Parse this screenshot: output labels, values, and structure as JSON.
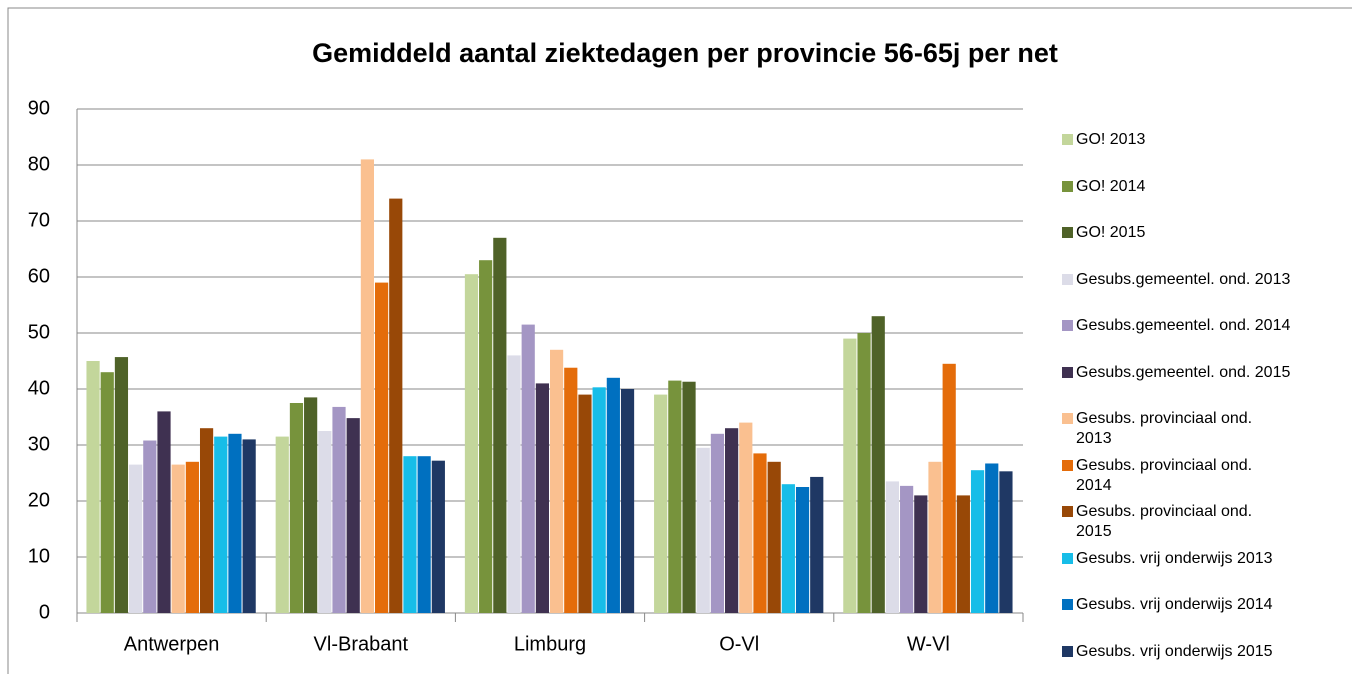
{
  "chart_data": {
    "type": "bar",
    "title": "Gemiddeld aantal ziektedagen per provincie 56-65j per net",
    "categories": [
      "Antwerpen",
      "Vl-Brabant",
      "Limburg",
      "O-Vl",
      "W-Vl"
    ],
    "series": [
      {
        "name": "GO! 2013",
        "color": "#c3d69b",
        "values": [
          45,
          31.5,
          60.5,
          39,
          49
        ]
      },
      {
        "name": "GO! 2014",
        "color": "#77933c",
        "values": [
          43,
          37.5,
          63,
          41.5,
          50
        ]
      },
      {
        "name": "GO! 2015",
        "color": "#4f6228",
        "values": [
          45.7,
          38.5,
          67,
          41.3,
          53
        ]
      },
      {
        "name": "Gesubs.gemeentel. ond. 2013",
        "color": "#dcdce8",
        "values": [
          26.5,
          32.5,
          46,
          29.5,
          23.5
        ]
      },
      {
        "name": "Gesubs.gemeentel. ond. 2014",
        "color": "#a496c4",
        "values": [
          30.8,
          36.8,
          51.5,
          32,
          22.7
        ]
      },
      {
        "name": "Gesubs.gemeentel. ond. 2015",
        "color": "#3f3151",
        "values": [
          36,
          34.8,
          41,
          33,
          21
        ]
      },
      {
        "name": "Gesubs. provinciaal ond. 2013",
        "color": "#fac090",
        "values": [
          26.5,
          81,
          47,
          34,
          27
        ]
      },
      {
        "name": "Gesubs. provinciaal ond. 2014",
        "color": "#e46c0a",
        "values": [
          27,
          59,
          43.8,
          28.5,
          44.5
        ]
      },
      {
        "name": "Gesubs. provinciaal ond. 2015",
        "color": "#984807",
        "values": [
          33,
          74,
          39,
          27,
          21
        ]
      },
      {
        "name": "Gesubs. vrij onderwijs 2013",
        "color": "#17bde8",
        "values": [
          31.5,
          28,
          40.3,
          23,
          25.5
        ]
      },
      {
        "name": "Gesubs. vrij onderwijs 2014",
        "color": "#0070c0",
        "values": [
          32,
          28,
          42,
          22.5,
          26.7
        ]
      },
      {
        "name": "Gesubs. vrij onderwijs 2015",
        "color": "#1f3864",
        "values": [
          31,
          27.2,
          40,
          24.3,
          25.3
        ]
      }
    ],
    "ylim": [
      0,
      90
    ],
    "yticks": [
      0,
      10,
      20,
      30,
      40,
      50,
      60,
      70,
      80,
      90
    ],
    "grid": true
  }
}
